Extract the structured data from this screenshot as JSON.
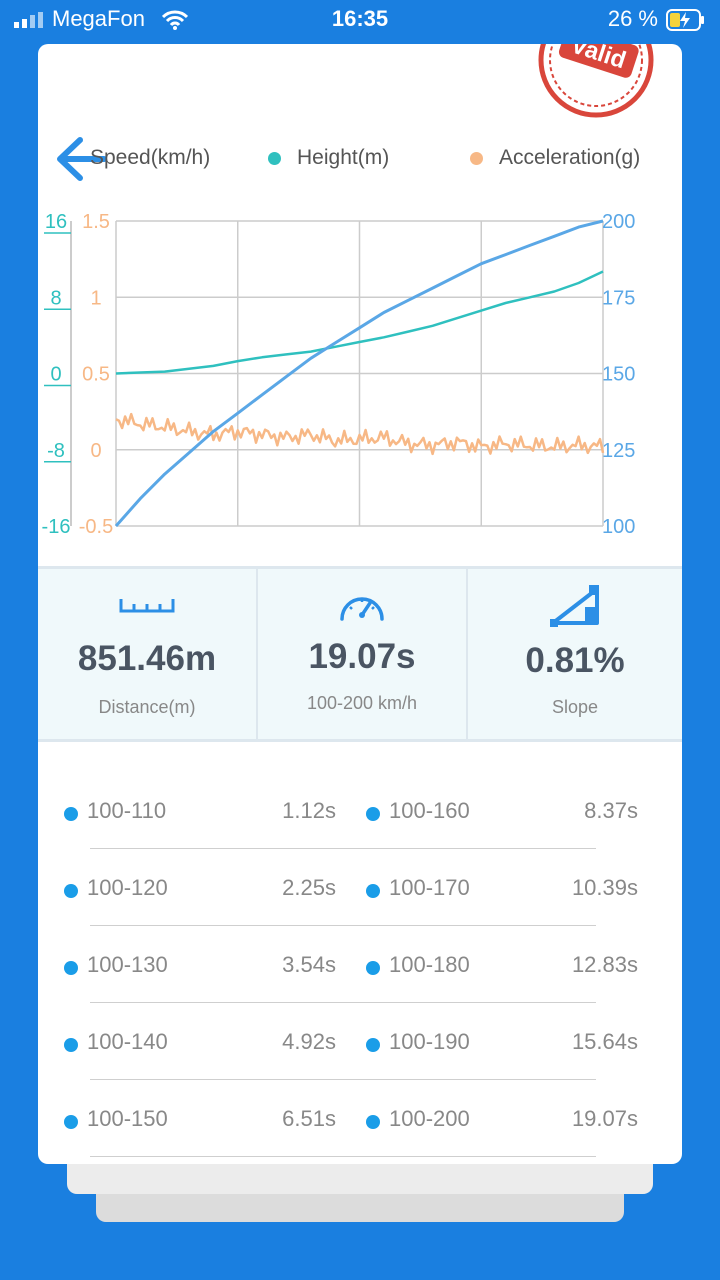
{
  "status": {
    "carrier": "MegaFon",
    "time": "16:35",
    "battery": "26 %"
  },
  "stamp": {
    "text": "Valid"
  },
  "legend": [
    {
      "label": "Speed(km/h)",
      "color": "#5aa7e6"
    },
    {
      "label": "Height(m)",
      "color": "#2fc0bf"
    },
    {
      "label": "Acceleration(g)",
      "color": "#f7b886"
    }
  ],
  "chart_data": {
    "type": "line",
    "y_axis_height": {
      "ticks": [
        "16",
        "8",
        "0",
        "-8",
        "-16"
      ],
      "ylim": [
        -16,
        16
      ],
      "color": "#2fc0bf"
    },
    "y_axis_acceleration": {
      "ticks": [
        "1.5",
        "1",
        "0.5",
        "0",
        "-0.5"
      ],
      "ylim": [
        -0.5,
        1.5
      ],
      "color": "#f7b886"
    },
    "y_axis_speed": {
      "ticks": [
        "200",
        "175",
        "150",
        "125",
        "100"
      ],
      "ylim": [
        100,
        200
      ],
      "color": "#5aa7e6"
    },
    "grid": true,
    "x_fraction": [
      0,
      0.05,
      0.1,
      0.15,
      0.2,
      0.25,
      0.3,
      0.35,
      0.4,
      0.45,
      0.5,
      0.55,
      0.6,
      0.65,
      0.7,
      0.75,
      0.8,
      0.85,
      0.9,
      0.95,
      1.0
    ],
    "series": [
      {
        "name": "Speed(km/h)",
        "color": "#5aa7e6",
        "values": [
          100,
          109,
          117,
          124,
          131,
          137,
          143,
          149,
          155,
          160,
          165,
          170,
          174,
          178,
          182,
          186,
          189,
          192,
          195,
          198,
          200
        ]
      },
      {
        "name": "Height(m)",
        "color": "#2fc0bf",
        "values": [
          0,
          0.1,
          0.2,
          0.5,
          0.8,
          1.3,
          1.7,
          2.0,
          2.3,
          2.8,
          3.3,
          3.8,
          4.4,
          5.0,
          5.8,
          6.6,
          7.4,
          8.0,
          8.6,
          9.5,
          10.7
        ]
      },
      {
        "name": "Acceleration(g)",
        "color": "#f7b886",
        "values": [
          0.2,
          0.17,
          0.15,
          0.12,
          0.1,
          0.12,
          0.1,
          0.08,
          0.1,
          0.06,
          0.07,
          0.08,
          0.04,
          0.03,
          0.05,
          0.02,
          0.04,
          0.03,
          0.02,
          0.03,
          0.02
        ]
      }
    ]
  },
  "stats": {
    "distance": {
      "value": "851.46m",
      "label": "Distance(m)",
      "icon": "ruler-icon"
    },
    "time": {
      "value": "19.07s",
      "label": "100-200 km/h",
      "icon": "speedometer-icon"
    },
    "slope": {
      "value": "0.81%",
      "label": "Slope",
      "icon": "slope-icon"
    }
  },
  "splits": [
    {
      "left": {
        "range": "100-110",
        "time": "1.12s"
      },
      "right": {
        "range": "100-160",
        "time": "8.37s"
      }
    },
    {
      "left": {
        "range": "100-120",
        "time": "2.25s"
      },
      "right": {
        "range": "100-170",
        "time": "10.39s"
      }
    },
    {
      "left": {
        "range": "100-130",
        "time": "3.54s"
      },
      "right": {
        "range": "100-180",
        "time": "12.83s"
      }
    },
    {
      "left": {
        "range": "100-140",
        "time": "4.92s"
      },
      "right": {
        "range": "100-190",
        "time": "15.64s"
      }
    },
    {
      "left": {
        "range": "100-150",
        "time": "6.51s"
      },
      "right": {
        "range": "100-200",
        "time": "19.07s"
      }
    }
  ]
}
